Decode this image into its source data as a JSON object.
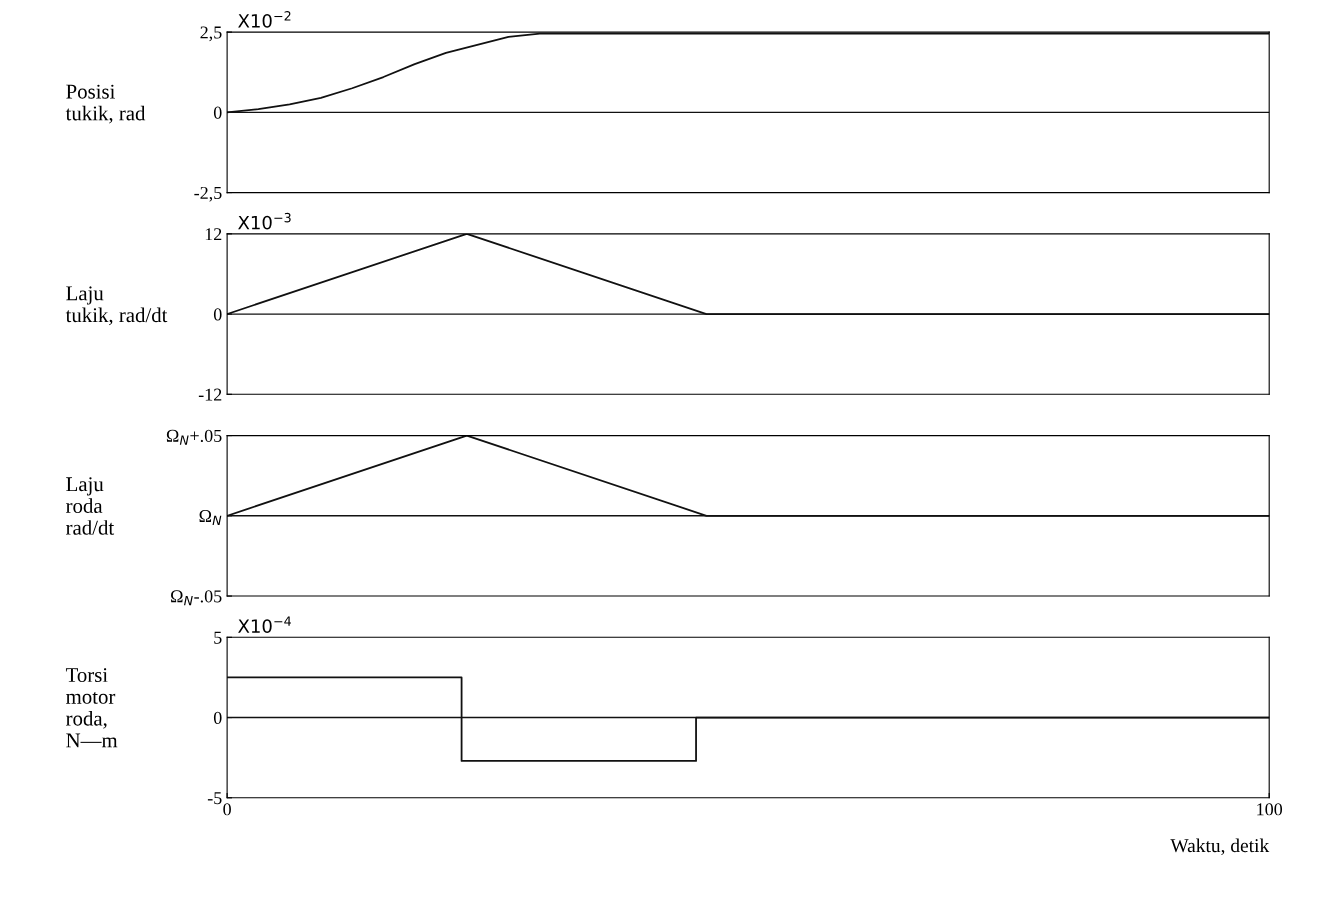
{
  "chart_data": [
    {
      "type": "line",
      "ylabel": "Posisi\ntukik, rad",
      "annotations": [
        "X10$^{−2}$"
      ],
      "x": [
        0,
        3,
        6,
        9,
        12,
        15,
        18,
        21,
        24,
        27,
        30,
        35,
        100
      ],
      "series": [
        {
          "color": "#111111",
          "values": [
            0,
            0.1,
            0.25,
            0.45,
            0.75,
            1.1,
            1.5,
            1.85,
            2.1,
            2.35,
            2.45,
            2.45,
            2.45
          ]
        }
      ],
      "xlim": [
        0,
        100
      ],
      "ylim": [
        -2.5,
        2.5
      ],
      "yticks": [
        {
          "value": -2.5,
          "label": "-2,5"
        },
        0,
        {
          "value": 2.5,
          "label": "2,5"
        }
      ],
      "ref_lines": [
        {
          "axis": "y",
          "value": 0,
          "color": "#111111"
        }
      ],
      "tick_labels": "y",
      "grid": false
    },
    {
      "type": "line",
      "ylabel": "Laju\ntukik, rad/dt",
      "annotations": [
        "X10$^{−3}$"
      ],
      "x": [
        0,
        23,
        46,
        100
      ],
      "series": [
        {
          "color": "#111111",
          "values": [
            0,
            12,
            0,
            0
          ]
        }
      ],
      "xlim": [
        0,
        100
      ],
      "ylim": [
        -12,
        12
      ],
      "yticks": [
        -12,
        0,
        12
      ],
      "ref_lines": [
        {
          "axis": "y",
          "value": 0,
          "color": "#111111"
        }
      ],
      "tick_labels": "y",
      "grid": false
    },
    {
      "type": "line",
      "ylabel": "Laju\nroda\nrad/dt",
      "x": [
        0,
        23,
        46,
        100
      ],
      "series": [
        {
          "color": "#111111",
          "values": [
            0,
            0.05,
            0,
            0
          ]
        }
      ],
      "xlim": [
        0,
        100
      ],
      "ylim": [
        -0.05,
        0.05
      ],
      "yticks": [
        {
          "value": -0.05,
          "label": "Ω$_{N}$-.05"
        },
        {
          "value": 0,
          "label": "Ω$_{N}$"
        },
        {
          "value": 0.05,
          "label": "Ω$_{N}$+.05"
        }
      ],
      "ref_lines": [
        {
          "axis": "y",
          "value": 0,
          "color": "#111111"
        }
      ],
      "tick_labels": "y",
      "grid": false
    },
    {
      "type": "step",
      "ylabel": "Torsi\nmotor\nroda,\nN—m",
      "xlabel": "Waktu, detik",
      "annotations": [
        "X10$^{−4}$"
      ],
      "x": [
        0,
        22.5,
        45,
        100
      ],
      "series": [
        {
          "color": "#111111",
          "values": [
            2.5,
            -2.7,
            0,
            0
          ]
        }
      ],
      "xlim": [
        0,
        100
      ],
      "xticks": [
        0,
        100
      ],
      "ylim": [
        -5,
        5
      ],
      "yticks": [
        -5,
        0,
        5
      ],
      "ref_lines": [
        {
          "axis": "y",
          "value": 0,
          "color": "#111111"
        }
      ],
      "grid": false
    }
  ]
}
